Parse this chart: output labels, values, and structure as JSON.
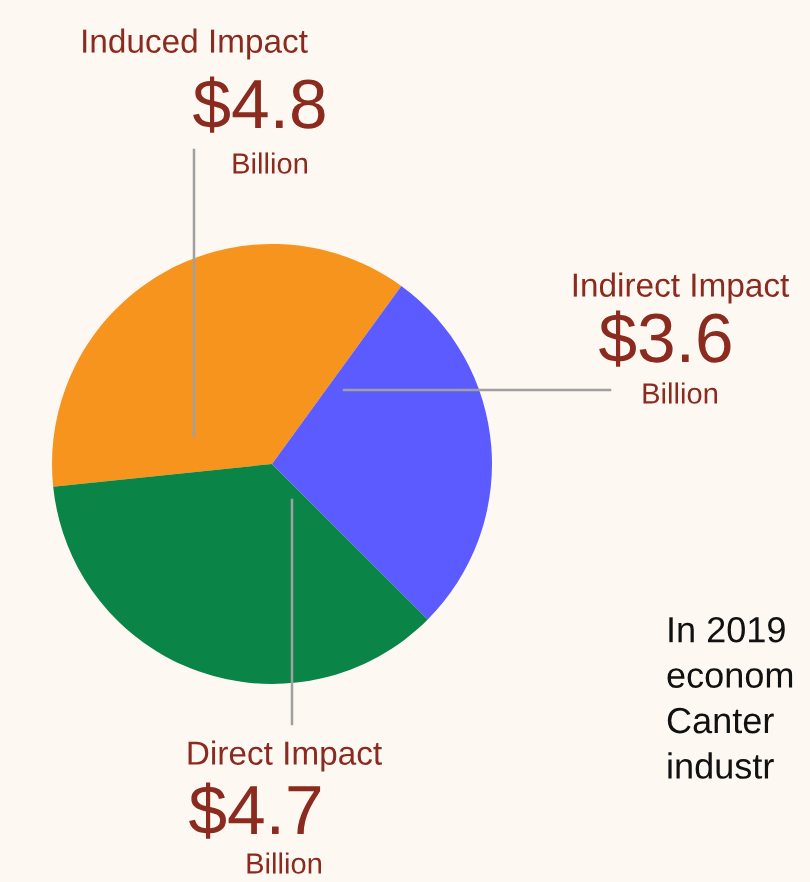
{
  "chart_data": {
    "type": "pie",
    "categories": [
      "Induced Impact",
      "Direct Impact",
      "Indirect Impact"
    ],
    "values": [
      4.8,
      4.7,
      3.6
    ],
    "value_labels": [
      "$4.8",
      "$4.7",
      "$3.6"
    ],
    "colors": [
      "#f7941d",
      "#0a8447",
      "#5b5bff"
    ],
    "annotations": [
      {
        "text": "Billion",
        "x": "Induced Impact"
      },
      {
        "text": "Billion",
        "x": "Direct Impact"
      },
      {
        "text": "Billion",
        "x": "Indirect Impact"
      },
      "In 2019\neconom\nCanter\nindustr"
    ]
  }
}
